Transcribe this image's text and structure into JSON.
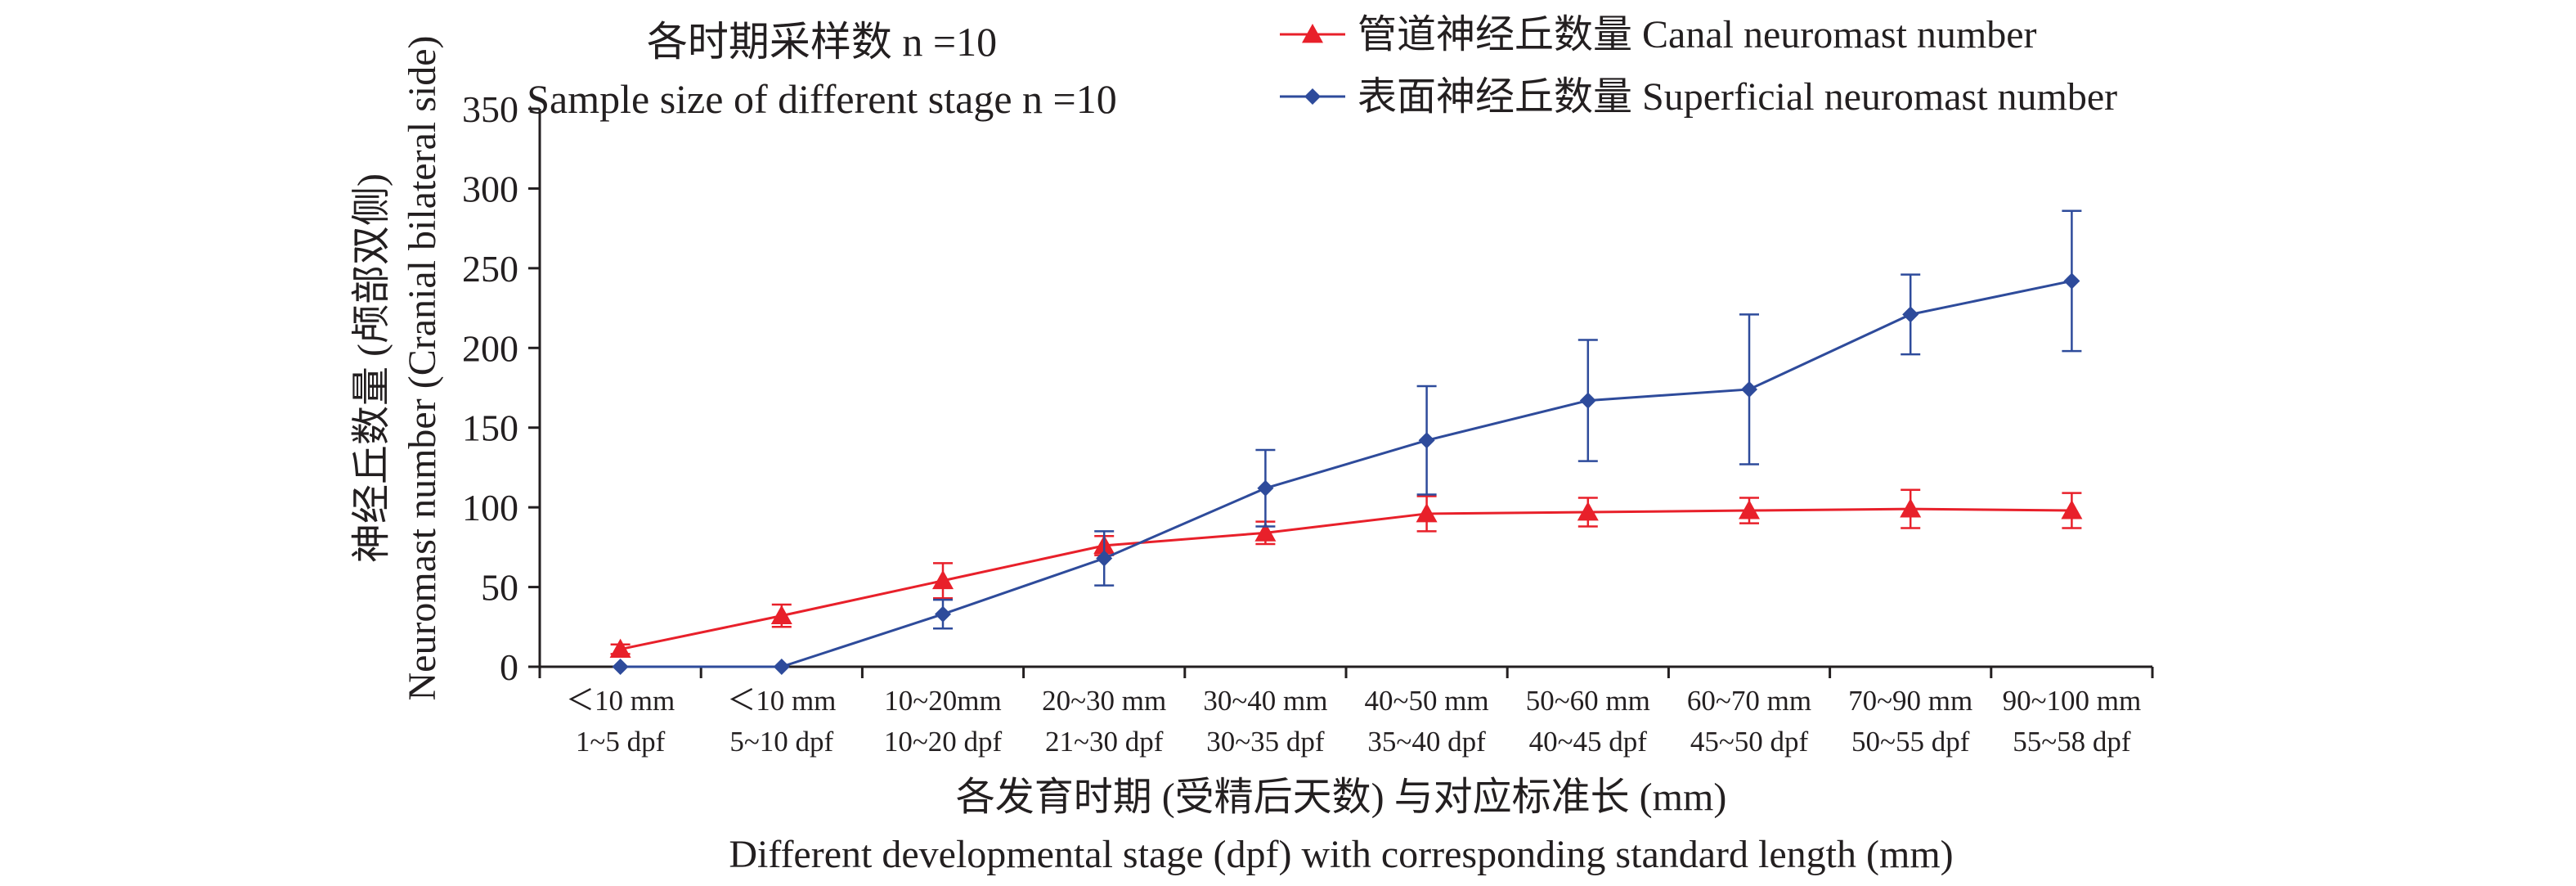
{
  "chart_data": {
    "type": "line",
    "title_lines": [
      "各时期采样数 n =10",
      "Sample size of different stage n =10"
    ],
    "ylabel_lines": [
      "神经丘数量 (颅部双侧)",
      "Neuromast number (Cranial bilateral side)"
    ],
    "xlabel_lines": [
      "各发育时期 (受精后天数) 与对应标准长 (mm)",
      "Different developmental stage (dpf) with corresponding standard length (mm)"
    ],
    "ylim": [
      0,
      350
    ],
    "yticks": [
      "0",
      "50",
      "100",
      "150",
      "200",
      "250",
      "300",
      "350"
    ],
    "categories": [
      [
        "＜10 mm",
        "1~5 dpf"
      ],
      [
        "＜10 mm",
        "5~10 dpf"
      ],
      [
        "10~20mm",
        "10~20 dpf"
      ],
      [
        "20~30 mm",
        "21~30 dpf"
      ],
      [
        "30~40 mm",
        "30~35 dpf"
      ],
      [
        "40~50 mm",
        "35~40 dpf"
      ],
      [
        "50~60 mm",
        "40~45 dpf"
      ],
      [
        "60~70 mm",
        "45~50 dpf"
      ],
      [
        "70~90 mm",
        "50~55 dpf"
      ],
      [
        "90~100 mm",
        "55~58 dpf"
      ]
    ],
    "legend_position": "top-right",
    "grid": false,
    "series": [
      {
        "name": "管道神经丘数量 Canal neuromast number",
        "color": "#e8202a",
        "marker": "triangle",
        "values": [
          11,
          32,
          54,
          76,
          84,
          96,
          97,
          98,
          99,
          98
        ],
        "errors": [
          3,
          7,
          11,
          6,
          7,
          11,
          9,
          8,
          12,
          11
        ]
      },
      {
        "name": "表面神经丘数量 Superficial neuromast number",
        "color": "#2e4b9b",
        "marker": "diamond",
        "values": [
          0,
          0,
          33,
          68,
          112,
          142,
          167,
          174,
          221,
          242
        ],
        "errors": [
          0,
          0,
          9,
          17,
          24,
          34,
          38,
          47,
          25,
          44
        ]
      }
    ]
  }
}
